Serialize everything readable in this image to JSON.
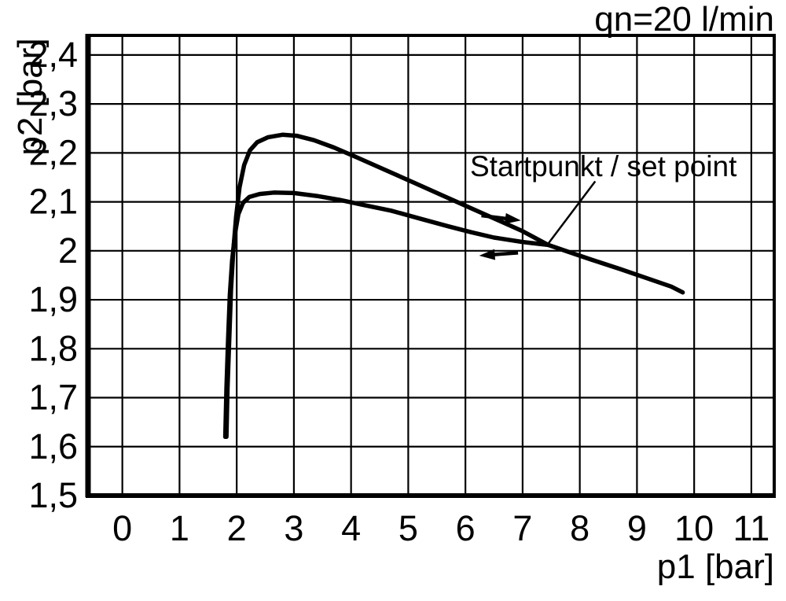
{
  "chart_data": {
    "type": "line",
    "title": "qn=20 l/min",
    "xlabel": "p1 [bar]",
    "ylabel": "p2 [bar]",
    "grid": true,
    "legend": "none",
    "line_color": "#000000",
    "background": "#ffffff",
    "xlim": [
      -0.6,
      11.4
    ],
    "ylim": [
      1.5,
      2.44
    ],
    "x_ticks": [
      {
        "v": 0,
        "label": "0"
      },
      {
        "v": 1,
        "label": "1"
      },
      {
        "v": 2,
        "label": "2"
      },
      {
        "v": 3,
        "label": "3"
      },
      {
        "v": 4,
        "label": "4"
      },
      {
        "v": 5,
        "label": "5"
      },
      {
        "v": 6,
        "label": "6"
      },
      {
        "v": 7,
        "label": "7"
      },
      {
        "v": 8,
        "label": "8"
      },
      {
        "v": 9,
        "label": "9"
      },
      {
        "v": 10,
        "label": "10"
      },
      {
        "v": 11,
        "label": "11"
      }
    ],
    "y_ticks": [
      {
        "v": 1.5,
        "label": "1,5"
      },
      {
        "v": 1.6,
        "label": "1,6"
      },
      {
        "v": 1.7,
        "label": "1,7"
      },
      {
        "v": 1.8,
        "label": "1,8"
      },
      {
        "v": 1.9,
        "label": "1,9"
      },
      {
        "v": 2.0,
        "label": "2"
      },
      {
        "v": 2.1,
        "label": "2,1"
      },
      {
        "v": 2.2,
        "label": "2,2"
      },
      {
        "v": 2.3,
        "label": "2,3"
      },
      {
        "v": 2.4,
        "label": "2,4"
      }
    ],
    "series": [
      {
        "name": "upper-hysteresis-branch",
        "points": [
          [
            1.82,
            1.62
          ],
          [
            1.84,
            1.72
          ],
          [
            1.87,
            1.82
          ],
          [
            1.9,
            1.92
          ],
          [
            1.94,
            2.0
          ],
          [
            1.99,
            2.07
          ],
          [
            2.05,
            2.13
          ],
          [
            2.13,
            2.175
          ],
          [
            2.23,
            2.205
          ],
          [
            2.36,
            2.222
          ],
          [
            2.55,
            2.232
          ],
          [
            2.8,
            2.237
          ],
          [
            3.05,
            2.235
          ],
          [
            3.35,
            2.226
          ],
          [
            3.7,
            2.211
          ],
          [
            4.1,
            2.191
          ],
          [
            4.6,
            2.165
          ],
          [
            5.1,
            2.139
          ],
          [
            5.6,
            2.113
          ],
          [
            6.1,
            2.087
          ],
          [
            6.6,
            2.061
          ],
          [
            7.0,
            2.04
          ],
          [
            7.45,
            2.012
          ],
          [
            7.8,
            1.998
          ],
          [
            8.2,
            1.982
          ],
          [
            8.7,
            1.963
          ],
          [
            9.2,
            1.943
          ],
          [
            9.6,
            1.927
          ],
          [
            9.8,
            1.915
          ]
        ]
      },
      {
        "name": "lower-hysteresis-branch",
        "points": [
          [
            1.8,
            1.62
          ],
          [
            1.82,
            1.72
          ],
          [
            1.85,
            1.82
          ],
          [
            1.88,
            1.91
          ],
          [
            1.92,
            1.98
          ],
          [
            1.97,
            2.035
          ],
          [
            2.03,
            2.075
          ],
          [
            2.11,
            2.098
          ],
          [
            2.22,
            2.11
          ],
          [
            2.4,
            2.116
          ],
          [
            2.65,
            2.119
          ],
          [
            3.0,
            2.118
          ],
          [
            3.4,
            2.112
          ],
          [
            3.8,
            2.104
          ],
          [
            4.2,
            2.094
          ],
          [
            4.7,
            2.082
          ],
          [
            5.2,
            2.066
          ],
          [
            5.7,
            2.05
          ],
          [
            6.1,
            2.038
          ],
          [
            6.5,
            2.027
          ],
          [
            7.0,
            2.018
          ],
          [
            7.45,
            2.012
          ]
        ]
      }
    ],
    "annotation": {
      "text": "Startpunkt / set point",
      "leader": [
        [
          8.27,
          2.142
        ],
        [
          7.45,
          2.015
        ]
      ],
      "target_point": [
        7.45,
        2.012
      ]
    },
    "arrows": [
      {
        "name": "direction-arrow-right",
        "tail": [
          6.28,
          2.072
        ],
        "tip": [
          6.97,
          2.062
        ]
      },
      {
        "name": "direction-arrow-left",
        "tail": [
          6.92,
          1.996
        ],
        "tip": [
          6.24,
          1.99
        ]
      }
    ]
  }
}
